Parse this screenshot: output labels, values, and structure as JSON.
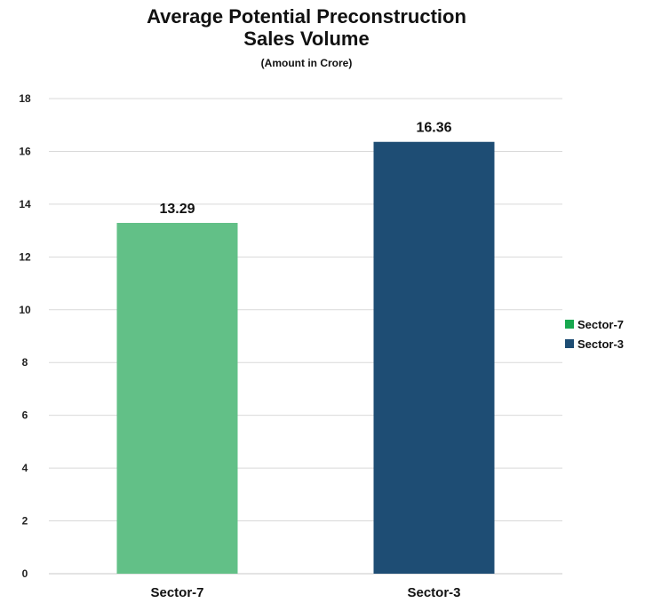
{
  "chart_data": {
    "type": "bar",
    "title_line1": "Average Potential Preconstruction",
    "title_line2": "Sales Volume",
    "subtitle": "(Amount in Crore)",
    "categories": [
      "Sector-7",
      "Sector-3"
    ],
    "values": [
      13.29,
      16.36
    ],
    "value_labels": [
      "13.29",
      "16.36"
    ],
    "colors": [
      "#62c087",
      "#1e4d74"
    ],
    "ylim": [
      0,
      18
    ],
    "yticks": [
      0,
      2,
      4,
      6,
      8,
      10,
      12,
      14,
      16,
      18
    ],
    "grid": true,
    "legend_position": "right",
    "legend": [
      {
        "label": "Sector-7",
        "color": "#18a84f"
      },
      {
        "label": "Sector-3",
        "color": "#1e4d74"
      }
    ]
  }
}
